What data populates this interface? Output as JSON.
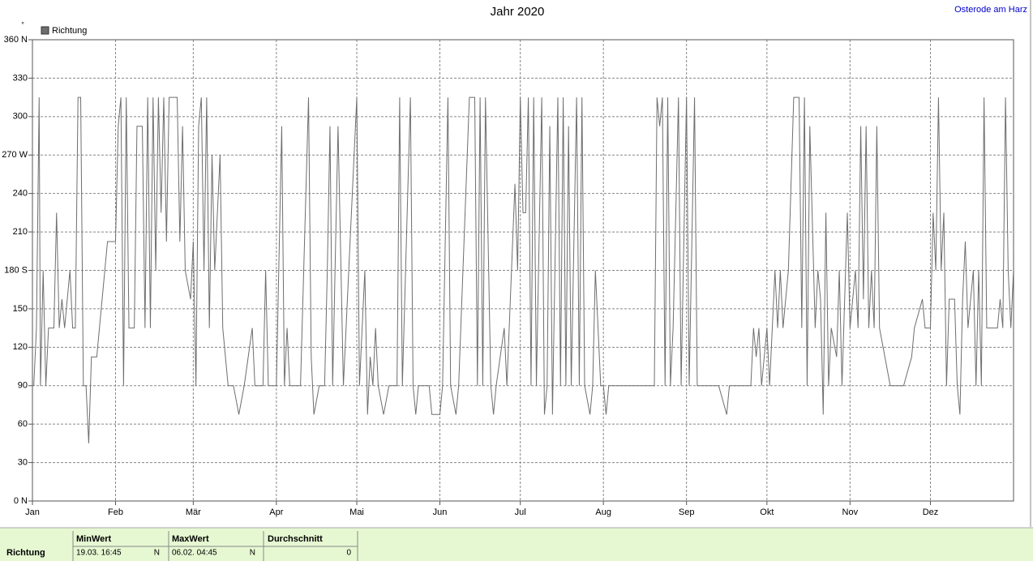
{
  "header": {
    "location": "Osterode am Harz"
  },
  "chart_data": {
    "type": "line",
    "title": "Jahr 2020",
    "y_unit": "°",
    "x": [
      0.5,
      1.5,
      2.5,
      3,
      4,
      5,
      6,
      8,
      9,
      10,
      11,
      12,
      13,
      14,
      15,
      16,
      17,
      18,
      19,
      20,
      21,
      22,
      24,
      27,
      28,
      31,
      32,
      33,
      34,
      35,
      36,
      38,
      39,
      41,
      42,
      43,
      44,
      45,
      46,
      47,
      48,
      49,
      50,
      51,
      54,
      55,
      56,
      57,
      59,
      60,
      61,
      62,
      63,
      64,
      65,
      66,
      67,
      68,
      70,
      71,
      73,
      75,
      77,
      79,
      82,
      83,
      86,
      87,
      88,
      91,
      93,
      94,
      95,
      96,
      100,
      103,
      104,
      105,
      107,
      109,
      110,
      111,
      112,
      114,
      116,
      121,
      122,
      123,
      124,
      125,
      126,
      127,
      128,
      129,
      131,
      133,
      136,
      137,
      138,
      141,
      142,
      143,
      144,
      148,
      149,
      152,
      153,
      155,
      156,
      158,
      159,
      163,
      165,
      166,
      167,
      168,
      169,
      171,
      172,
      173,
      176,
      177,
      180,
      181,
      182,
      183,
      184,
      185,
      186,
      187,
      188,
      190,
      191,
      192,
      193,
      194,
      196,
      197,
      198,
      199,
      200,
      201,
      203,
      204,
      205,
      206,
      208,
      209,
      210,
      212,
      213,
      214,
      215,
      225,
      232,
      233,
      234,
      235,
      236,
      237,
      238,
      239,
      241,
      242,
      244,
      245,
      247,
      248,
      256,
      259,
      260,
      268,
      269,
      270,
      271,
      272,
      274,
      275,
      277,
      278,
      279,
      280,
      282,
      284,
      286,
      287,
      288,
      289,
      290,
      292,
      293,
      294,
      295,
      296,
      297,
      298,
      300,
      301,
      302,
      304,
      305,
      307,
      308,
      309,
      310,
      311,
      312,
      313,
      314,
      315,
      316,
      320,
      325,
      328,
      329,
      332,
      333,
      335,
      336,
      337,
      338,
      339,
      340,
      341,
      342,
      344,
      345,
      346,
      347,
      348,
      349,
      351,
      352,
      353,
      354,
      355,
      356,
      358,
      360,
      361,
      362,
      363,
      364,
      365,
      366
    ],
    "series": [
      {
        "name": "Richtung",
        "color": "#6e6e6e",
        "values": [
          90,
          135,
          315,
          90,
          180,
          90,
          135,
          135,
          225,
          135,
          157.5,
          135,
          157.5,
          180,
          135,
          135,
          315,
          315,
          90,
          90,
          45,
          112.5,
          112.5,
          180,
          202.5,
          202.5,
          292.5,
          315,
          90,
          315,
          135,
          135,
          292.5,
          292.5,
          135,
          315,
          135,
          315,
          180,
          315,
          225,
          315,
          202.5,
          315,
          315,
          202.5,
          292.5,
          180,
          157.5,
          202.5,
          90,
          292.5,
          315,
          180,
          315,
          135,
          270,
          180,
          270,
          135,
          90,
          90,
          67.5,
          90,
          135,
          90,
          90,
          180,
          90,
          90,
          292.5,
          90,
          135,
          90,
          90,
          315,
          112.5,
          67.5,
          90,
          90,
          180,
          292.5,
          90,
          292.5,
          90,
          315,
          90,
          135,
          180,
          67.5,
          112.5,
          90,
          135,
          90,
          67.5,
          90,
          90,
          315,
          90,
          315,
          90,
          67.5,
          90,
          90,
          67.5,
          67.5,
          90,
          315,
          90,
          67.5,
          90,
          315,
          315,
          90,
          315,
          90,
          315,
          90,
          67.5,
          90,
          135,
          90,
          247.5,
          180,
          315,
          225,
          225,
          315,
          90,
          315,
          90,
          315,
          67.5,
          90,
          292.5,
          67.5,
          315,
          90,
          315,
          90,
          292.5,
          90,
          315,
          90,
          315,
          90,
          67.5,
          90,
          180,
          90,
          90,
          67.5,
          90,
          90,
          90,
          315,
          292.5,
          315,
          90,
          315,
          90,
          135,
          315,
          90,
          315,
          90,
          315,
          90,
          90,
          67.5,
          90,
          90,
          135,
          112.5,
          135,
          90,
          135,
          90,
          180,
          135,
          180,
          135,
          180,
          315,
          315,
          135,
          315,
          90,
          292.5,
          135,
          180,
          157.5,
          67.5,
          225,
          90,
          135,
          112.5,
          180,
          90,
          225,
          135,
          180,
          135,
          292.5,
          157.5,
          292.5,
          135,
          180,
          135,
          292.5,
          135,
          90,
          90,
          112.5,
          135,
          157.5,
          135,
          135,
          225,
          180,
          315,
          180,
          225,
          90,
          157.5,
          157.5,
          90,
          67.5,
          157.5,
          202.5,
          135,
          180,
          90,
          180,
          90,
          315,
          135,
          135,
          135,
          157.5,
          135,
          315,
          180,
          135,
          180
        ]
      }
    ],
    "xlim": [
      0,
      366
    ],
    "ylim": [
      0,
      360
    ],
    "xticks": [
      {
        "value": 0,
        "label": "Jan"
      },
      {
        "value": 31,
        "label": "Feb"
      },
      {
        "value": 60,
        "label": "Mär"
      },
      {
        "value": 91,
        "label": "Apr"
      },
      {
        "value": 121,
        "label": "Mai"
      },
      {
        "value": 152,
        "label": "Jun"
      },
      {
        "value": 182,
        "label": "Jul"
      },
      {
        "value": 213,
        "label": "Aug"
      },
      {
        "value": 244,
        "label": "Sep"
      },
      {
        "value": 274,
        "label": "Okt"
      },
      {
        "value": 305,
        "label": "Nov"
      },
      {
        "value": 335,
        "label": "Dez"
      }
    ],
    "yticks": [
      {
        "value": 0,
        "label": "0 N"
      },
      30,
      60,
      90,
      120,
      150,
      {
        "value": 180,
        "label": "180 S"
      },
      210,
      240,
      {
        "value": 270,
        "label": "270 W"
      },
      300,
      330,
      {
        "value": 360,
        "label": "360 N"
      }
    ],
    "grid": true
  },
  "footer": {
    "row_label": "Richtung",
    "min": {
      "header": "MinWert",
      "time": "19.03.  16:45",
      "direction": "N"
    },
    "max": {
      "header": "MaxWert",
      "time": "06.02.  04:45",
      "direction": "N"
    },
    "avg": {
      "header": "Durchschnitt",
      "value": "0"
    }
  }
}
